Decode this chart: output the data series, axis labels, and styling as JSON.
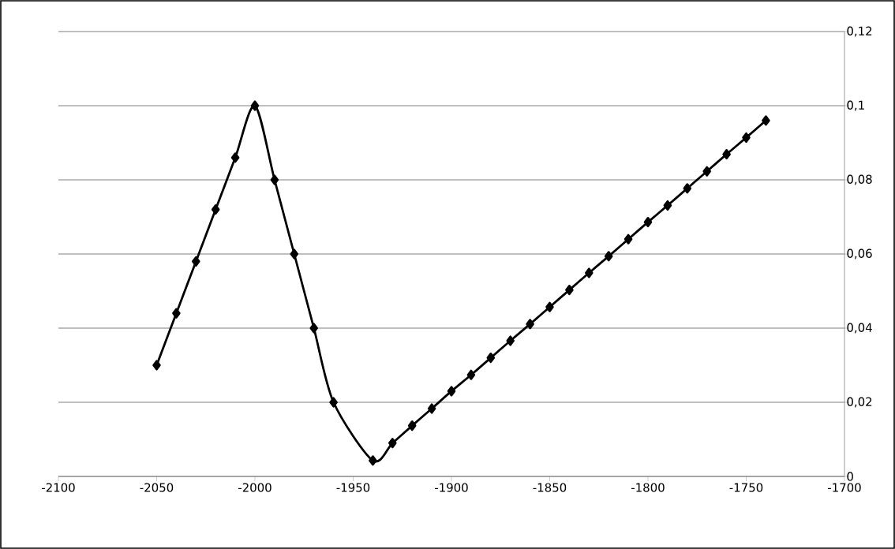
{
  "chart_data": {
    "type": "line",
    "x": [
      -2050,
      -2040,
      -2030,
      -2020,
      -2010,
      -2000,
      -1990,
      -1980,
      -1970,
      -1960,
      -1940,
      -1930,
      -1920,
      -1910,
      -1900,
      -1890,
      -1880,
      -1870,
      -1860,
      -1850,
      -1840,
      -1830,
      -1820,
      -1810,
      -1800,
      -1790,
      -1780,
      -1770,
      -1760,
      -1750,
      -1740
    ],
    "series": [
      {
        "color": "#000000",
        "values": [
          0.03,
          0.044,
          0.058,
          0.072,
          0.086,
          0.1,
          0.08,
          0.06,
          0.04,
          0.02,
          0.0043,
          0.009,
          0.0137,
          0.0183,
          0.023,
          0.0274,
          0.032,
          0.0366,
          0.0411,
          0.0457,
          0.0503,
          0.0549,
          0.0594,
          0.064,
          0.0686,
          0.0731,
          0.0777,
          0.0823,
          0.0869,
          0.0914,
          0.096
        ]
      }
    ],
    "xlim": [
      -2100,
      -1700
    ],
    "xticks": [
      -2100,
      -2050,
      -2000,
      -1950,
      -1900,
      -1850,
      -1800,
      -1750,
      -1700
    ],
    "ylim": [
      0,
      0.12
    ],
    "yticks": [
      0,
      {
        "value": 0.02,
        "label": "0,02"
      },
      {
        "value": 0.04,
        "label": "0,04"
      },
      {
        "value": 0.06,
        "label": "0,06"
      },
      {
        "value": 0.08,
        "label": "0,08"
      },
      {
        "value": 0.1,
        "label": "0,1"
      },
      {
        "value": 0.12,
        "label": "0,12"
      }
    ],
    "grid": "y",
    "legend": false,
    "marker": "diamond",
    "line_style": "solid"
  }
}
